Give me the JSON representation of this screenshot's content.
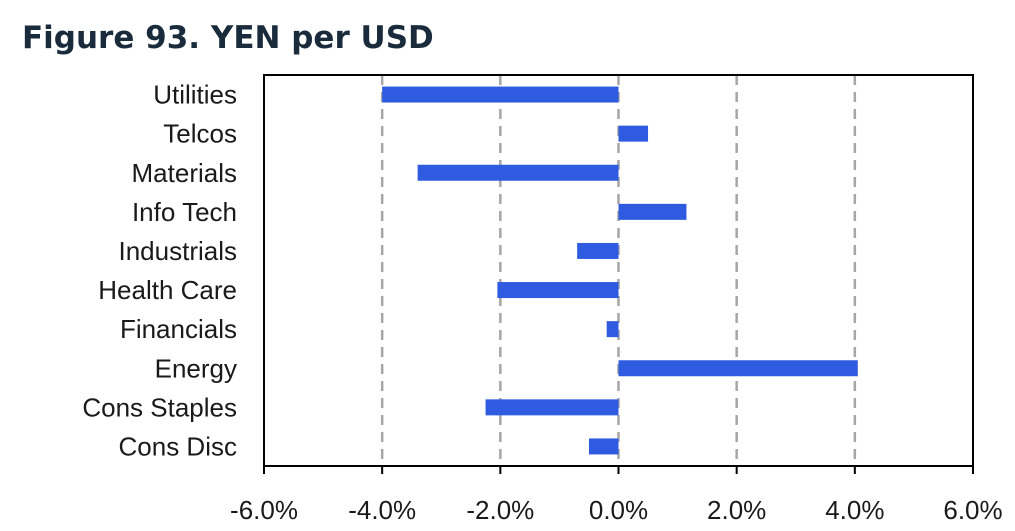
{
  "title": "Figure 93. YEN per USD",
  "chart_data": {
    "type": "bar",
    "orientation": "horizontal",
    "title": "Figure 93. YEN per USD",
    "xlabel": "",
    "ylabel": "",
    "categories": [
      "Utilities",
      "Telcos",
      "Materials",
      "Info Tech",
      "Industrials",
      "Health Care",
      "Financials",
      "Energy",
      "Cons Staples",
      "Cons Disc"
    ],
    "values": [
      -4.0,
      0.5,
      -3.4,
      1.15,
      -0.7,
      -2.05,
      -0.2,
      4.05,
      -2.25,
      -0.5
    ],
    "xlim": [
      -6.0,
      6.0
    ],
    "xticks": [
      -6.0,
      -4.0,
      -2.0,
      0.0,
      2.0,
      4.0,
      6.0
    ],
    "xtick_labels": [
      "-6.0%",
      "-4.0%",
      "-2.0%",
      "0.0%",
      "2.0%",
      "4.0%",
      "6.0%"
    ],
    "grid": "vertical dashed",
    "bar_color": "#2f5be0",
    "grid_color": "#a6a6a6",
    "legend": "none"
  }
}
